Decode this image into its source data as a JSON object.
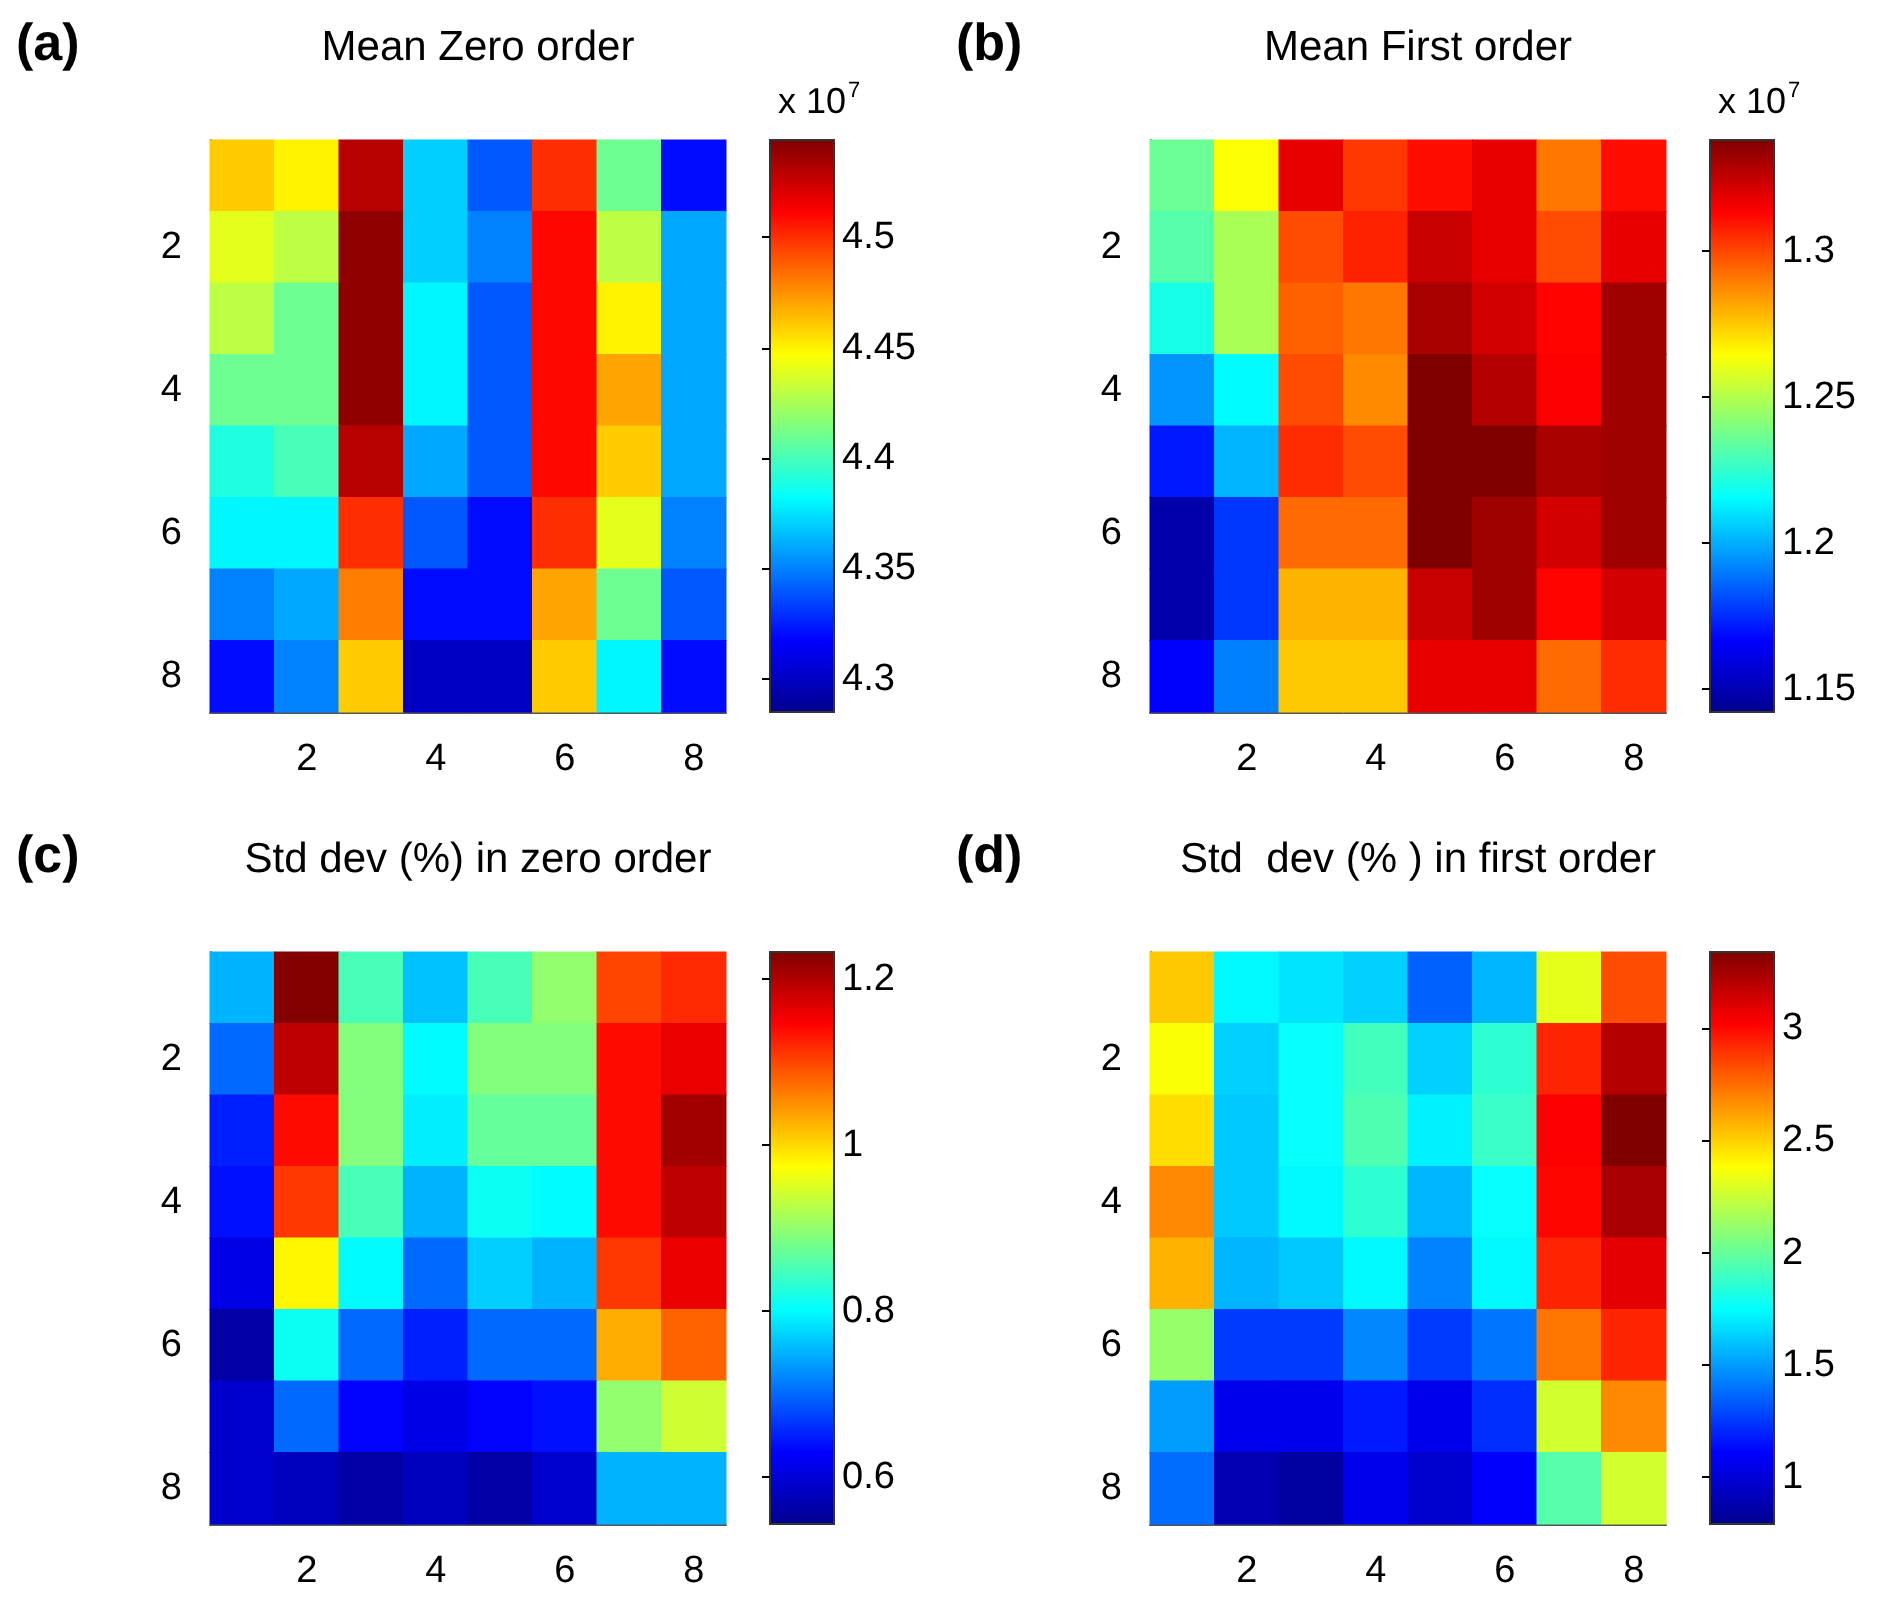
{
  "chart_data": [
    {
      "type": "heatmap",
      "title": "Mean Zero order",
      "annotations": [
        "(a)"
      ],
      "clabel": "x 10$^{7}$",
      "categories": [
        null,
        "2",
        null,
        "4",
        null,
        "6",
        null,
        "8"
      ],
      "y_categories": [
        null,
        "2",
        null,
        "4",
        null,
        "6",
        null,
        "8"
      ],
      "cells": [
        [
          4.46,
          4.45,
          4.53,
          4.37,
          4.34,
          4.5,
          4.41,
          4.32
        ],
        [
          4.44,
          4.43,
          4.54,
          4.37,
          4.35,
          4.51,
          4.43,
          4.36
        ],
        [
          4.43,
          4.41,
          4.54,
          4.38,
          4.34,
          4.51,
          4.45,
          4.36
        ],
        [
          4.41,
          4.41,
          4.54,
          4.38,
          4.34,
          4.51,
          4.47,
          4.36
        ],
        [
          4.39,
          4.4,
          4.53,
          4.36,
          4.34,
          4.51,
          4.46,
          4.36
        ],
        [
          4.38,
          4.38,
          4.5,
          4.34,
          4.32,
          4.5,
          4.44,
          4.35
        ],
        [
          4.35,
          4.36,
          4.48,
          4.32,
          4.32,
          4.47,
          4.41,
          4.34
        ],
        [
          4.32,
          4.35,
          4.46,
          4.3,
          4.3,
          4.46,
          4.38,
          4.32
        ]
      ],
      "clim": [
        4.285,
        4.544
      ],
      "cticks": [
        4.3,
        4.35,
        4.4,
        4.45,
        4.5
      ]
    },
    {
      "type": "heatmap",
      "title": "Mean First order",
      "annotations": [
        "(b)"
      ],
      "clabel": "x 10$^{7}$",
      "categories": [
        null,
        "2",
        null,
        "4",
        null,
        "6",
        null,
        "8"
      ],
      "y_categories": [
        null,
        "2",
        null,
        "4",
        null,
        "6",
        null,
        "8"
      ],
      "cells": [
        [
          1.236,
          1.264,
          1.318,
          1.303,
          1.311,
          1.318,
          1.291,
          1.311
        ],
        [
          1.232,
          1.248,
          1.299,
          1.307,
          1.324,
          1.318,
          1.299,
          1.318
        ],
        [
          1.22,
          1.248,
          1.295,
          1.291,
          1.33,
          1.322,
          1.313,
          1.332
        ],
        [
          1.195,
          1.215,
          1.299,
          1.287,
          1.338,
          1.328,
          1.314,
          1.332
        ],
        [
          1.171,
          1.201,
          1.305,
          1.299,
          1.338,
          1.338,
          1.33,
          1.332
        ],
        [
          1.148,
          1.177,
          1.293,
          1.293,
          1.338,
          1.332,
          1.322,
          1.332
        ],
        [
          1.148,
          1.177,
          1.279,
          1.279,
          1.324,
          1.332,
          1.313,
          1.322
        ],
        [
          1.166,
          1.191,
          1.275,
          1.275,
          1.318,
          1.318,
          1.293,
          1.305
        ]
      ],
      "clim": [
        1.142,
        1.338
      ],
      "cticks": [
        1.15,
        1.2,
        1.25,
        1.3
      ]
    },
    {
      "type": "heatmap",
      "title": "Std dev (%) in zero order",
      "annotations": [
        "(c)"
      ],
      "categories": [
        null,
        "2",
        null,
        "4",
        null,
        "6",
        null,
        "8"
      ],
      "y_categories": [
        null,
        "2",
        null,
        "4",
        null,
        "6",
        null,
        "8"
      ],
      "cells": [
        [
          0.75,
          1.23,
          0.85,
          0.76,
          0.85,
          0.9,
          1.1,
          1.12
        ],
        [
          0.7,
          1.19,
          0.89,
          0.8,
          0.89,
          0.89,
          1.14,
          1.16
        ],
        [
          0.65,
          1.14,
          0.89,
          0.79,
          0.87,
          0.87,
          1.14,
          1.21
        ],
        [
          0.64,
          1.11,
          0.85,
          0.75,
          0.81,
          0.8,
          1.14,
          1.19
        ],
        [
          0.61,
          0.98,
          0.8,
          0.7,
          0.77,
          0.75,
          1.11,
          1.16
        ],
        [
          0.56,
          0.81,
          0.7,
          0.65,
          0.7,
          0.7,
          1.03,
          1.08
        ],
        [
          0.59,
          0.7,
          0.63,
          0.61,
          0.63,
          0.64,
          0.9,
          0.94
        ],
        [
          0.59,
          0.58,
          0.56,
          0.58,
          0.56,
          0.59,
          0.75,
          0.75
        ]
      ],
      "clim": [
        0.543,
        1.233
      ],
      "cticks": [
        0.6,
        0.8,
        1,
        1.2
      ]
    },
    {
      "type": "heatmap",
      "title": "Std  dev (% ) in first order",
      "annotations": [
        "(d)"
      ],
      "categories": [
        null,
        "2",
        null,
        "4",
        null,
        "6",
        null,
        "8"
      ],
      "y_categories": [
        null,
        "2",
        null,
        "4",
        null,
        "6",
        null,
        "8"
      ],
      "cells": [
        [
          2.52,
          1.73,
          1.68,
          1.63,
          1.35,
          1.56,
          2.32,
          2.83
        ],
        [
          2.37,
          1.63,
          1.76,
          1.91,
          1.63,
          1.86,
          2.93,
          3.21
        ],
        [
          2.47,
          1.61,
          1.76,
          1.94,
          1.71,
          1.89,
          3.03,
          3.34
        ],
        [
          2.68,
          1.61,
          1.73,
          1.86,
          1.56,
          1.76,
          3.01,
          3.24
        ],
        [
          2.58,
          1.56,
          1.61,
          1.73,
          1.43,
          1.73,
          2.93,
          3.09
        ],
        [
          2.12,
          1.25,
          1.25,
          1.45,
          1.25,
          1.4,
          2.73,
          2.93
        ],
        [
          1.5,
          1.05,
          1.05,
          1.17,
          1.05,
          1.22,
          2.27,
          2.68
        ],
        [
          1.38,
          0.89,
          0.84,
          1.05,
          0.97,
          1.1,
          1.96,
          2.27
        ]
      ],
      "clim": [
        0.79,
        3.34
      ],
      "cticks": [
        1,
        1.5,
        2,
        2.5,
        3
      ]
    }
  ]
}
